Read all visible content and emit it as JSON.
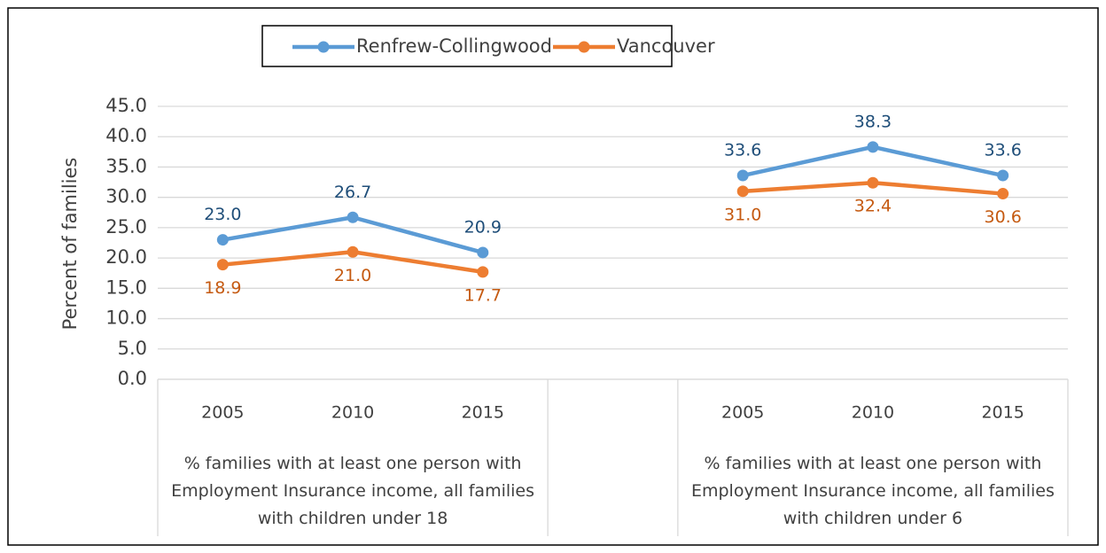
{
  "chart_data": {
    "type": "line",
    "y_label": "Percent of families",
    "categories": [
      "2005",
      "2010",
      "2015",
      null,
      "2005",
      "2010",
      "2015"
    ],
    "groups": [
      "% families with at least one person with Employment Insurance income, all families with children under 18",
      "% families with at least one person with Employment Insurance income, all families with children under 6"
    ],
    "series": [
      {
        "name": "Renfrew-Collingwood",
        "color": "#5b9bd5",
        "label_color": "#1f4e79",
        "label_position": "above",
        "values": [
          23.0,
          26.7,
          20.9,
          null,
          33.6,
          38.3,
          33.6
        ],
        "value_labels": [
          "23.0",
          "26.7",
          "20.9",
          null,
          "33.6",
          "38.3",
          "33.6"
        ]
      },
      {
        "name": "Vancouver",
        "color": "#ed7d31",
        "label_color": "#c55a11",
        "label_position": "below",
        "values": [
          18.9,
          21.0,
          17.7,
          null,
          31.0,
          32.4,
          30.6
        ],
        "value_labels": [
          "18.9",
          "21.0",
          "17.7",
          null,
          "31.0",
          "32.4",
          "30.6"
        ]
      }
    ],
    "ylim": [
      0,
      45
    ],
    "yticks": [
      {
        "value": 0,
        "label": "0.0"
      },
      {
        "value": 5,
        "label": "5.0"
      },
      {
        "value": 10,
        "label": "10.0"
      },
      {
        "value": 15,
        "label": "15.0"
      },
      {
        "value": 20,
        "label": "20.0"
      },
      {
        "value": 25,
        "label": "25.0"
      },
      {
        "value": 30,
        "label": "30.0"
      },
      {
        "value": 35,
        "label": "35.0"
      },
      {
        "value": 40,
        "label": "40.0"
      },
      {
        "value": 45,
        "label": "45.0"
      }
    ],
    "grid": true,
    "legend": "top"
  }
}
